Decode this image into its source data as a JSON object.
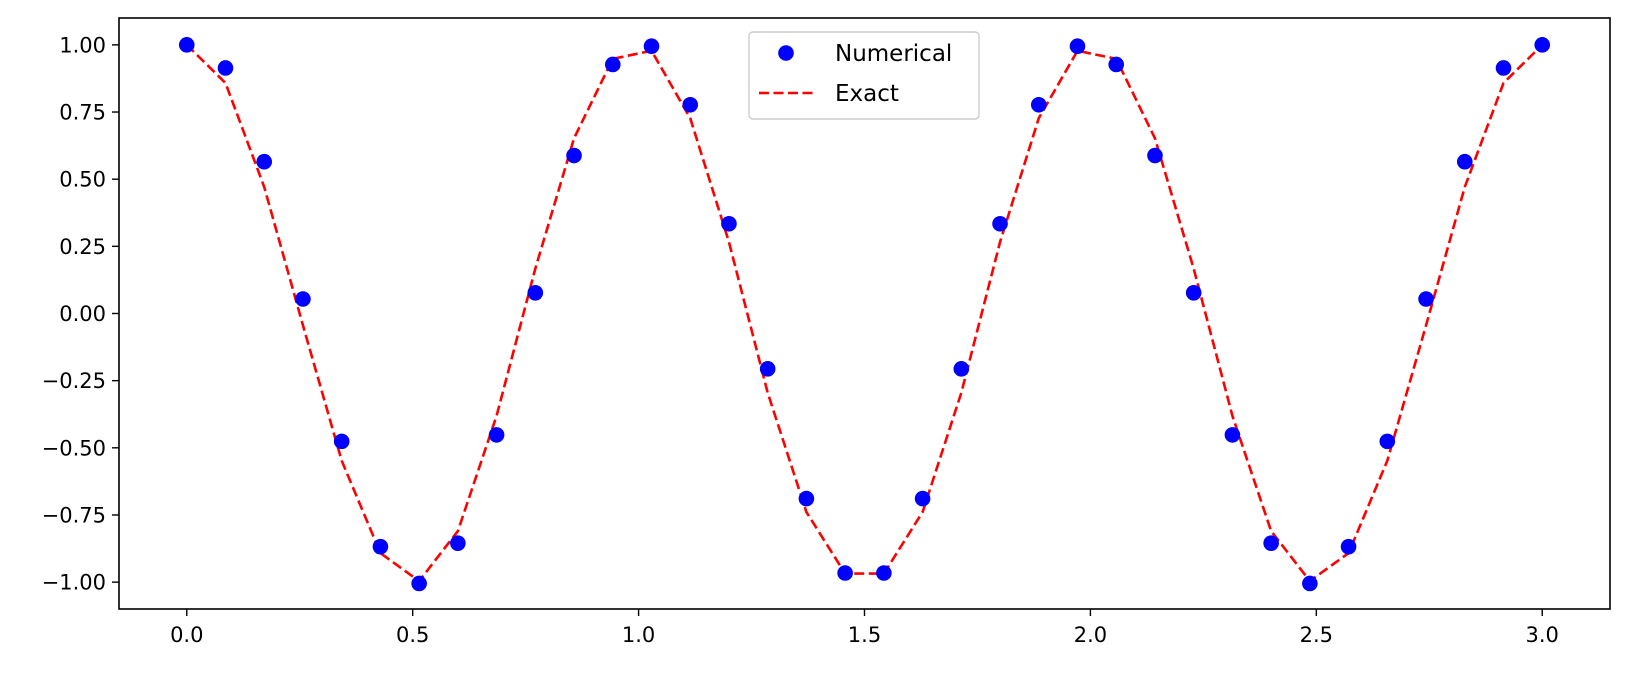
{
  "chart_data": {
    "type": "line",
    "title": "",
    "xlabel": "",
    "ylabel": "",
    "xlim": [
      -0.15,
      3.15
    ],
    "ylim": [
      -1.1,
      1.1
    ],
    "xticks": [
      0.0,
      0.5,
      1.0,
      1.5,
      2.0,
      2.5,
      3.0
    ],
    "xtick_labels": [
      "0.0",
      "0.5",
      "1.0",
      "1.5",
      "2.0",
      "2.5",
      "3.0"
    ],
    "yticks": [
      1.0,
      0.75,
      0.5,
      0.25,
      0.0,
      -0.25,
      -0.5,
      -0.75,
      -1.0
    ],
    "ytick_labels": [
      "1.00",
      "0.75",
      "0.50",
      "0.25",
      "0.00",
      "−0.25",
      "−0.50",
      "−0.75",
      "−1.00"
    ],
    "grid": false,
    "legend_position": "top-center",
    "series": [
      {
        "name": "Numerical",
        "style": "markers",
        "color": "#0000ff",
        "x": [
          0.0,
          0.0857,
          0.1714,
          0.2571,
          0.3429,
          0.4286,
          0.5143,
          0.6,
          0.6857,
          0.7714,
          0.8571,
          0.9429,
          1.0286,
          1.1143,
          1.2,
          1.2857,
          1.3714,
          1.4571,
          1.5429,
          1.6286,
          1.7143,
          1.8,
          1.8857,
          1.9714,
          2.0571,
          2.1429,
          2.2286,
          2.3143,
          2.4,
          2.4857,
          2.5714,
          2.6571,
          2.7429,
          2.8286,
          2.9143,
          3.0
        ],
        "y": [
          1.0,
          0.914,
          0.565,
          0.054,
          -0.476,
          -0.868,
          -1.005,
          -0.855,
          -0.452,
          0.077,
          0.588,
          0.927,
          0.995,
          0.777,
          0.334,
          -0.206,
          -0.689,
          -0.966,
          -0.966,
          -0.689,
          -0.206,
          0.334,
          0.777,
          0.995,
          0.927,
          0.588,
          0.077,
          -0.452,
          -0.855,
          -1.005,
          -0.868,
          -0.476,
          0.054,
          0.565,
          0.914,
          1.0
        ]
      },
      {
        "name": "Exact",
        "style": "dashed",
        "color": "#ff0000",
        "x": [
          0.0,
          0.0857,
          0.1714,
          0.2571,
          0.3429,
          0.4286,
          0.5143,
          0.6,
          0.6857,
          0.7714,
          0.8571,
          0.9429,
          1.0286,
          1.1143,
          1.2,
          1.2857,
          1.3714,
          1.4571,
          1.5429,
          1.6286,
          1.7143,
          1.8,
          1.8857,
          1.9714,
          2.0571,
          2.1429,
          2.2286,
          2.3143,
          2.4,
          2.4857,
          2.5714,
          2.6571,
          2.7429,
          2.8286,
          2.9143,
          3.0
        ],
        "y": [
          1.0,
          0.858,
          0.471,
          -0.044,
          -0.548,
          -0.892,
          -0.996,
          -0.81,
          -0.381,
          0.167,
          0.652,
          0.948,
          0.978,
          0.727,
          0.266,
          -0.295,
          -0.739,
          -0.968,
          -0.968,
          -0.739,
          -0.295,
          0.266,
          0.727,
          0.978,
          0.948,
          0.652,
          0.167,
          -0.381,
          -0.81,
          -0.996,
          -0.892,
          -0.548,
          -0.044,
          0.471,
          0.858,
          1.0
        ]
      }
    ]
  }
}
